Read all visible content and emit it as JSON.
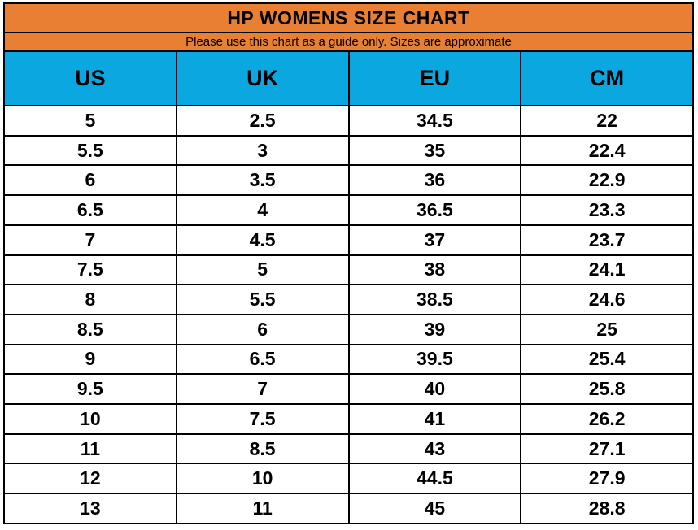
{
  "title": "HP WOMENS SIZE CHART",
  "subtitle": "Please use this chart as a guide only. Sizes are approximate",
  "colors": {
    "banner_orange": "#E97F32",
    "header_blue": "#0AA7E0",
    "row_white": "#FFFFFF",
    "border_black": "#000000",
    "text_black": "#000000"
  },
  "chart_data": {
    "type": "table",
    "title": "HP WOMENS SIZE CHART",
    "subtitle": "Please use this chart as a guide only. Sizes are approximate",
    "columns": [
      "US",
      "UK",
      "EU",
      "CM"
    ],
    "rows": [
      [
        "5",
        "2.5",
        "34.5",
        "22"
      ],
      [
        "5.5",
        "3",
        "35",
        "22.4"
      ],
      [
        "6",
        "3.5",
        "36",
        "22.9"
      ],
      [
        "6.5",
        "4",
        "36.5",
        "23.3"
      ],
      [
        "7",
        "4.5",
        "37",
        "23.7"
      ],
      [
        "7.5",
        "5",
        "38",
        "24.1"
      ],
      [
        "8",
        "5.5",
        "38.5",
        "24.6"
      ],
      [
        "8.5",
        "6",
        "39",
        "25"
      ],
      [
        "9",
        "6.5",
        "39.5",
        "25.4"
      ],
      [
        "9.5",
        "7",
        "40",
        "25.8"
      ],
      [
        "10",
        "7.5",
        "41",
        "26.2"
      ],
      [
        "11",
        "8.5",
        "43",
        "27.1"
      ],
      [
        "12",
        "10",
        "44.5",
        "27.9"
      ],
      [
        "13",
        "11",
        "45",
        "28.8"
      ]
    ]
  }
}
